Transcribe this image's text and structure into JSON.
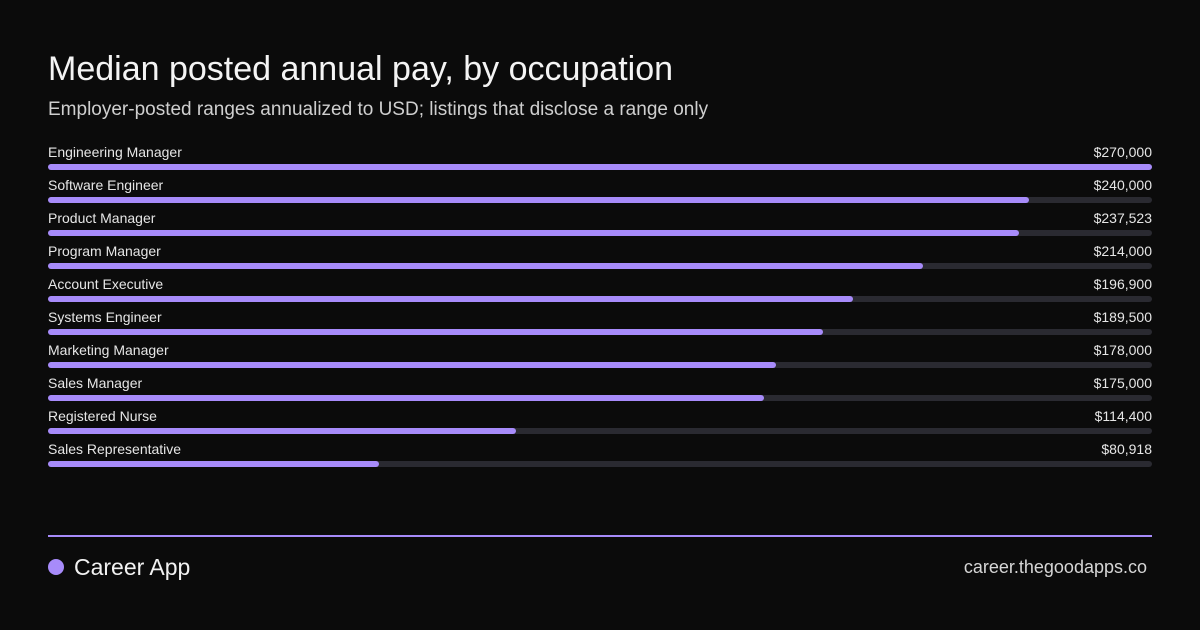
{
  "title": "Median posted annual pay, by occupation",
  "subtitle": "Employer-posted ranges annualized to USD; listings that disclose a range only",
  "colors": {
    "accent": "#a78bfa",
    "track": "#2a2a31",
    "background": "#0b0b0b"
  },
  "chart_data": {
    "type": "bar",
    "orientation": "horizontal",
    "categories": [
      "Engineering Manager",
      "Software Engineer",
      "Product Manager",
      "Program Manager",
      "Account Executive",
      "Systems Engineer",
      "Marketing Manager",
      "Sales Manager",
      "Registered Nurse",
      "Sales Representative"
    ],
    "values": [
      270000,
      240000,
      237523,
      214000,
      196900,
      189500,
      178000,
      175000,
      114400,
      80918
    ],
    "value_labels": [
      "$270,000",
      "$240,000",
      "$237,523",
      "$214,000",
      "$196,900",
      "$189,500",
      "$178,000",
      "$175,000",
      "$114,400",
      "$80,918"
    ],
    "xlim": [
      0,
      270000
    ],
    "grid": false,
    "legend": "none"
  },
  "footer": {
    "brand_name": "Career App",
    "brand_icon": "dot-icon",
    "site": "career.thegoodapps.co"
  }
}
